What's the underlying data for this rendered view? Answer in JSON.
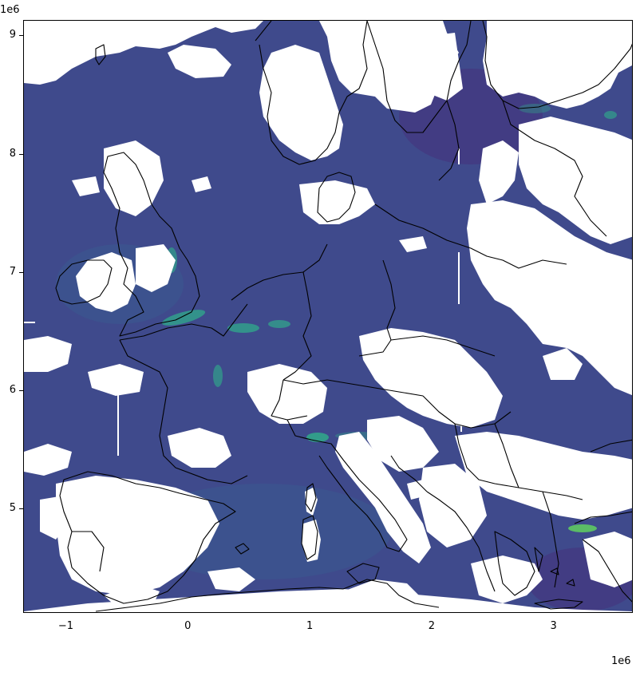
{
  "map": {
    "x_offset_label": "1e6",
    "y_offset_label": "1e6",
    "x_ticks": [
      {
        "value": -1,
        "label": "−1"
      },
      {
        "value": 0,
        "label": "0"
      },
      {
        "value": 1,
        "label": "1"
      },
      {
        "value": 2,
        "label": "2"
      },
      {
        "value": 3,
        "label": "3"
      }
    ],
    "y_ticks": [
      {
        "value": 9,
        "label": "9"
      },
      {
        "value": 8,
        "label": "8"
      },
      {
        "value": 7,
        "label": "7"
      },
      {
        "value": 6,
        "label": "6"
      },
      {
        "value": 5,
        "label": "5"
      }
    ],
    "x_range": [
      -1.35,
      3.65
    ],
    "y_range": [
      4.12,
      9.13
    ],
    "colors": {
      "field_base": "#3f4a8c",
      "field_dark": "#44337a",
      "field_mid": "#3b5a8f",
      "hotspot": "#2fb08a",
      "hotspot_bright": "#5ec962",
      "coastline": "#000000",
      "no_data": "#ffffff"
    }
  }
}
